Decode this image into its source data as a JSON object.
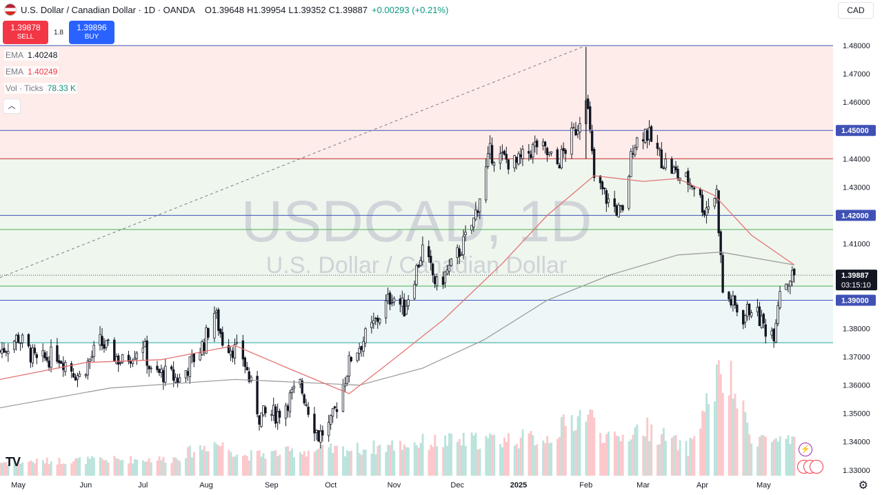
{
  "header": {
    "title": "U.S. Dollar / Canadian Dollar · 1D · OANDA",
    "open_label": "O",
    "open": "1.39648",
    "high_label": "H",
    "high": "1.39954",
    "low_label": "L",
    "low": "1.39352",
    "close_label": "C",
    "close": "1.39887",
    "change": "+0.00293 (+0.21%)"
  },
  "currency_button": "CAD",
  "trade": {
    "sell_price": "1.39878",
    "sell_label": "SELL",
    "spread": "1.8",
    "buy_price": "1.39896",
    "buy_label": "BUY"
  },
  "indicators": [
    {
      "name": "EMA",
      "value": "1.40248",
      "color": "#f23645"
    },
    {
      "name": "EMA",
      "value": "1.40249",
      "color": "#f23645"
    },
    {
      "name": "Vol · Ticks",
      "value": "78.33 K",
      "color": "#089981"
    }
  ],
  "collapse_icon": "chevron-up-icon",
  "watermark": {
    "symbol": "USDCAD, 1D",
    "description": "U.S. Dollar / Canadian Dollar"
  },
  "price_label": {
    "price": "1.39887",
    "countdown": "03:15:10"
  },
  "logo": "TradingView",
  "colors": {
    "up": "#089981",
    "down": "#f23645",
    "ema50": "#e57373",
    "ema200": "#9e9e9e",
    "resistance_zone": "#fdecea",
    "support_zone": "#eef6ee",
    "lower_zone": "#edf7f7",
    "level_line": "#3f51b5",
    "band_line": "#4caf50"
  },
  "chart_data": {
    "type": "candlestick",
    "title": "USDCAD, 1D",
    "symbol": "U.S. Dollar / Canadian Dollar",
    "exchange": "OANDA",
    "timeframe": "1D",
    "ylim": [
      1.328,
      1.481
    ],
    "y_ticks": [
      "1.48000",
      "1.47000",
      "1.46000",
      "1.45000",
      "1.44000",
      "1.43000",
      "1.42000",
      "1.41000",
      "1.40000",
      "1.39000",
      "1.38000",
      "1.37000",
      "1.36000",
      "1.35000",
      "1.34000",
      "1.33000"
    ],
    "y_tick_values": [
      1.48,
      1.47,
      1.46,
      1.45,
      1.44,
      1.43,
      1.42,
      1.41,
      1.4,
      1.39,
      1.38,
      1.37,
      1.36,
      1.35,
      1.34,
      1.33
    ],
    "x_labels": [
      "May",
      "Jun",
      "Jul",
      "Aug",
      "Sep",
      "Oct",
      "Nov",
      "Dec",
      "2025",
      "Feb",
      "Mar",
      "Apr",
      "May"
    ],
    "x_label_dates": [
      "2024-05-01",
      "2024-06-03",
      "2024-07-01",
      "2024-08-01",
      "2024-09-02",
      "2024-10-01",
      "2024-11-01",
      "2024-12-02",
      "2025-01-01",
      "2025-02-03",
      "2025-03-03",
      "2025-04-01",
      "2025-05-01"
    ],
    "highlighted_levels": [
      "1.45000",
      "1.42000",
      "1.39000"
    ],
    "horizontal_levels": [
      1.48,
      1.45,
      1.44,
      1.42,
      1.415,
      1.395,
      1.39,
      1.375
    ],
    "zones": [
      {
        "from": 1.44,
        "to": 1.48,
        "name": "resistance"
      },
      {
        "from": 1.395,
        "to": 1.44,
        "name": "support"
      },
      {
        "from": 1.375,
        "to": 1.395,
        "name": "lower"
      }
    ],
    "trendline": {
      "from": [
        "2024-04-22",
        1.398
      ],
      "to": [
        "2025-02-03",
        1.48
      ],
      "style": "dashed"
    },
    "price_path": [
      [
        "2024-04-22",
        1.372
      ],
      [
        "2024-05-01",
        1.377
      ],
      [
        "2024-05-10",
        1.368
      ],
      [
        "2024-05-20",
        1.371
      ],
      [
        "2024-05-31",
        1.363
      ],
      [
        "2024-06-10",
        1.375
      ],
      [
        "2024-06-21",
        1.368
      ],
      [
        "2024-07-01",
        1.375
      ],
      [
        "2024-07-05",
        1.364
      ],
      [
        "2024-07-11",
        1.364
      ],
      [
        "2024-07-19",
        1.362
      ],
      [
        "2024-07-31",
        1.375
      ],
      [
        "2024-08-05",
        1.386
      ],
      [
        "2024-08-09",
        1.376
      ],
      [
        "2024-08-19",
        1.37
      ],
      [
        "2024-08-27",
        1.349
      ],
      [
        "2024-09-05",
        1.35
      ],
      [
        "2024-09-16",
        1.36
      ],
      [
        "2024-09-25",
        1.342
      ],
      [
        "2024-10-01",
        1.346
      ],
      [
        "2024-10-11",
        1.37
      ],
      [
        "2024-10-21",
        1.38
      ],
      [
        "2024-10-31",
        1.392
      ],
      [
        "2024-11-06",
        1.387
      ],
      [
        "2024-11-15",
        1.408
      ],
      [
        "2024-11-22",
        1.395
      ],
      [
        "2024-11-29",
        1.402
      ],
      [
        "2024-12-05",
        1.41
      ],
      [
        "2024-12-10",
        1.418
      ],
      [
        "2024-12-18",
        1.442
      ],
      [
        "2024-12-31",
        1.438
      ],
      [
        "2025-01-10",
        1.445
      ],
      [
        "2025-01-20",
        1.438
      ],
      [
        "2025-01-30",
        1.452
      ],
      [
        "2025-02-03",
        1.464
      ],
      [
        "2025-02-07",
        1.433
      ],
      [
        "2025-02-14",
        1.425
      ],
      [
        "2025-02-21",
        1.42
      ],
      [
        "2025-02-26",
        1.445
      ],
      [
        "2025-03-04",
        1.45
      ],
      [
        "2025-03-12",
        1.44
      ],
      [
        "2025-03-20",
        1.434
      ],
      [
        "2025-03-28",
        1.431
      ],
      [
        "2025-04-02",
        1.422
      ],
      [
        "2025-04-08",
        1.428
      ],
      [
        "2025-04-11",
        1.393
      ],
      [
        "2025-04-21",
        1.384
      ],
      [
        "2025-04-25",
        1.388
      ],
      [
        "2025-05-02",
        1.38
      ],
      [
        "2025-05-06",
        1.379
      ],
      [
        "2025-05-09",
        1.395
      ],
      [
        "2025-05-14",
        1.398
      ],
      [
        "2025-05-16",
        1.3989
      ]
    ],
    "ema_50": [
      [
        "2024-04-22",
        1.362
      ],
      [
        "2024-06-03",
        1.368
      ],
      [
        "2024-07-10",
        1.369
      ],
      [
        "2024-08-15",
        1.374
      ],
      [
        "2024-09-10",
        1.366
      ],
      [
        "2024-10-10",
        1.357
      ],
      [
        "2024-10-28",
        1.367
      ],
      [
        "2024-11-25",
        1.383
      ],
      [
        "2024-12-24",
        1.403
      ],
      [
        "2025-01-15",
        1.42
      ],
      [
        "2025-02-07",
        1.434
      ],
      [
        "2025-03-03",
        1.432
      ],
      [
        "2025-03-20",
        1.433
      ],
      [
        "2025-04-07",
        1.427
      ],
      [
        "2025-04-25",
        1.413
      ],
      [
        "2025-05-16",
        1.4025
      ]
    ],
    "ema_200": [
      [
        "2024-04-22",
        1.352
      ],
      [
        "2024-06-15",
        1.359
      ],
      [
        "2024-08-15",
        1.362
      ],
      [
        "2024-09-15",
        1.361
      ],
      [
        "2024-10-15",
        1.36
      ],
      [
        "2024-11-15",
        1.366
      ],
      [
        "2024-12-15",
        1.376
      ],
      [
        "2025-01-15",
        1.39
      ],
      [
        "2025-02-15",
        1.399
      ],
      [
        "2025-03-20",
        1.406
      ],
      [
        "2025-04-10",
        1.407
      ],
      [
        "2025-05-16",
        1.4025
      ]
    ],
    "volume_path": [
      [
        "2024-04-22",
        0.12
      ],
      [
        "2024-06-01",
        0.14
      ],
      [
        "2024-07-15",
        0.15
      ],
      [
        "2024-08-05",
        0.3
      ],
      [
        "2024-08-20",
        0.18
      ],
      [
        "2024-09-15",
        0.22
      ],
      [
        "2024-10-15",
        0.24
      ],
      [
        "2024-11-15",
        0.3
      ],
      [
        "2024-12-15",
        0.32
      ],
      [
        "2025-01-15",
        0.34
      ],
      [
        "2025-02-03",
        0.58
      ],
      [
        "2025-02-15",
        0.3
      ],
      [
        "2025-03-03",
        0.44
      ],
      [
        "2025-03-25",
        0.24
      ],
      [
        "2025-04-08",
        0.86
      ],
      [
        "2025-04-15",
        0.82
      ],
      [
        "2025-04-25",
        0.36
      ],
      [
        "2025-05-16",
        0.28
      ]
    ],
    "volume_indicator": "Vol · Ticks",
    "current_price": 1.39887,
    "grid": false,
    "legend": "top-left"
  }
}
